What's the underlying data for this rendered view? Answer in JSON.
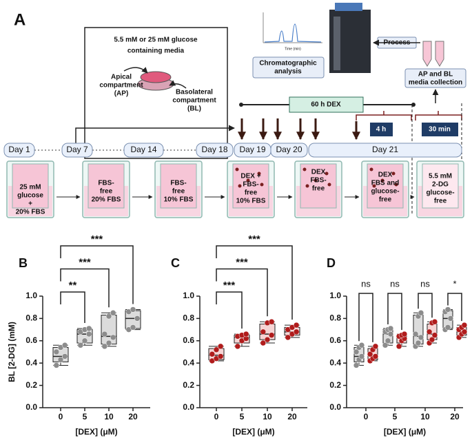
{
  "diagram": {
    "panel_label": "A",
    "media": [
      "5.5 mM or 25 mM glucose",
      "containing media"
    ],
    "apical": [
      "Apical",
      "compartment",
      "(AP)"
    ],
    "basolateral": [
      "Basolateral",
      "compartment",
      "(BL)"
    ],
    "time_axis": "Time (min)",
    "chromatographic": [
      "Chromatographic",
      "analysis"
    ],
    "process": "Process",
    "collection": [
      "AP and BL",
      "media collection"
    ],
    "dex_60h": "60 h DEX",
    "h4": "4 h",
    "min30": "30 min",
    "days": [
      "Day 1",
      "Day 7",
      "Day 14",
      "Day 18",
      "Day 19",
      "Day 20",
      "Day 21"
    ],
    "wells": [
      [
        "25 mM",
        "glucose",
        "+",
        "20% FBS"
      ],
      [
        "FBS-",
        "free",
        "20% FBS"
      ],
      [
        "FBS-",
        "free",
        "10% FBS"
      ],
      [
        "DEX +",
        "FBS-",
        "free",
        "10% FBS"
      ],
      [
        "DEX",
        "FBS-",
        "free"
      ],
      [
        "DEX",
        "FBS and",
        "glucose-",
        "free"
      ],
      [
        "5.5 mM",
        "2-DG",
        "glucose-",
        "free"
      ]
    ]
  },
  "chart_data": [
    {
      "type": "box",
      "panel_label": "B",
      "ylabel": "BL [2-DG] (mM)",
      "xlabel": "[DEX] (μM)",
      "categories": [
        "0",
        "5",
        "10",
        "20"
      ],
      "ylim": [
        0,
        1
      ],
      "yticks": [
        {
          "value": 0,
          "label": "0.0"
        },
        {
          "value": 0.2,
          "label": "0.2"
        },
        {
          "value": 0.4,
          "label": "0.4"
        },
        {
          "value": 0.6,
          "label": "0.6"
        },
        {
          "value": 0.8,
          "label": "0.8"
        },
        {
          "value": 1,
          "label": "1.0"
        }
      ],
      "comparisons": [
        "**",
        "***",
        "***"
      ],
      "series": [
        {
          "color": "#8c8c8c",
          "fill": "#dcdcdc",
          "boxes": [
            {
              "min": 0.38,
              "q1": 0.41,
              "median": 0.46,
              "q3": 0.54,
              "max": 0.56
            },
            {
              "min": 0.56,
              "q1": 0.58,
              "median": 0.66,
              "q3": 0.7,
              "max": 0.71
            },
            {
              "min": 0.55,
              "q1": 0.57,
              "median": 0.64,
              "q3": 0.83,
              "max": 0.85
            },
            {
              "min": 0.7,
              "q1": 0.71,
              "median": 0.8,
              "q3": 0.87,
              "max": 0.88
            }
          ],
          "points": [
            [
              0.38,
              0.43,
              0.46,
              0.5,
              0.54,
              0.56
            ],
            [
              0.56,
              0.6,
              0.66,
              0.68,
              0.7,
              0.71
            ],
            [
              0.55,
              0.58,
              0.63,
              0.66,
              0.82,
              0.85
            ],
            [
              0.7,
              0.72,
              0.8,
              0.86,
              0.88
            ]
          ]
        }
      ]
    },
    {
      "type": "box",
      "panel_label": "C",
      "xlabel": "[DEX] (μM)",
      "categories": [
        "0",
        "5",
        "10",
        "20"
      ],
      "ylim": [
        0,
        1
      ],
      "yticks": [
        {
          "value": 0,
          "label": "0.0"
        },
        {
          "value": 0.2,
          "label": "0.2"
        },
        {
          "value": 0.4,
          "label": "0.4"
        },
        {
          "value": 0.6,
          "label": "0.6"
        },
        {
          "value": 0.8,
          "label": "0.8"
        },
        {
          "value": 1,
          "label": "1.0"
        }
      ],
      "comparisons": [
        "***",
        "***",
        "***"
      ],
      "series": [
        {
          "color": "#b01c1c",
          "fill": "#f6d4d4",
          "boxes": [
            {
              "min": 0.42,
              "q1": 0.43,
              "median": 0.47,
              "q3": 0.53,
              "max": 0.55
            },
            {
              "min": 0.55,
              "q1": 0.58,
              "median": 0.63,
              "q3": 0.65,
              "max": 0.66
            },
            {
              "min": 0.58,
              "q1": 0.61,
              "median": 0.66,
              "q3": 0.75,
              "max": 0.77
            },
            {
              "min": 0.63,
              "q1": 0.65,
              "median": 0.68,
              "q3": 0.72,
              "max": 0.74
            }
          ],
          "points": [
            [
              0.42,
              0.44,
              0.46,
              0.48,
              0.52,
              0.55
            ],
            [
              0.55,
              0.6,
              0.62,
              0.64,
              0.65,
              0.66
            ],
            [
              0.58,
              0.61,
              0.65,
              0.68,
              0.76,
              0.77
            ],
            [
              0.63,
              0.66,
              0.68,
              0.7,
              0.72,
              0.74
            ]
          ]
        }
      ]
    },
    {
      "type": "grouped-box",
      "panel_label": "D",
      "xlabel": "[DEX] (μM)",
      "categories": [
        "0",
        "5",
        "10",
        "20"
      ],
      "ylim": [
        0,
        1
      ],
      "yticks": [
        {
          "value": 0,
          "label": "0.0"
        },
        {
          "value": 0.2,
          "label": "0.2"
        },
        {
          "value": 0.4,
          "label": "0.4"
        },
        {
          "value": 0.6,
          "label": "0.6"
        },
        {
          "value": 0.8,
          "label": "0.8"
        },
        {
          "value": 1,
          "label": "1.0"
        }
      ],
      "annotations": [
        "ns",
        "ns",
        "ns",
        "*"
      ],
      "series": [
        {
          "color": "#8c8c8c",
          "fill": "#dcdcdc",
          "boxes": [
            {
              "min": 0.38,
              "q1": 0.41,
              "median": 0.46,
              "q3": 0.54,
              "max": 0.56
            },
            {
              "min": 0.56,
              "q1": 0.58,
              "median": 0.66,
              "q3": 0.7,
              "max": 0.71
            },
            {
              "min": 0.55,
              "q1": 0.57,
              "median": 0.64,
              "q3": 0.83,
              "max": 0.85
            },
            {
              "min": 0.7,
              "q1": 0.71,
              "median": 0.8,
              "q3": 0.87,
              "max": 0.88
            }
          ],
          "points": [
            [
              0.38,
              0.43,
              0.46,
              0.5,
              0.54,
              0.56
            ],
            [
              0.56,
              0.6,
              0.66,
              0.68,
              0.7,
              0.71
            ],
            [
              0.55,
              0.58,
              0.63,
              0.66,
              0.82,
              0.85
            ],
            [
              0.7,
              0.72,
              0.8,
              0.86,
              0.88
            ]
          ]
        },
        {
          "color": "#b01c1c",
          "fill": "#f6d4d4",
          "boxes": [
            {
              "min": 0.42,
              "q1": 0.43,
              "median": 0.47,
              "q3": 0.53,
              "max": 0.55
            },
            {
              "min": 0.55,
              "q1": 0.58,
              "median": 0.63,
              "q3": 0.65,
              "max": 0.66
            },
            {
              "min": 0.58,
              "q1": 0.61,
              "median": 0.66,
              "q3": 0.75,
              "max": 0.77
            },
            {
              "min": 0.63,
              "q1": 0.65,
              "median": 0.68,
              "q3": 0.72,
              "max": 0.74
            }
          ],
          "points": [
            [
              0.42,
              0.44,
              0.46,
              0.48,
              0.52,
              0.55
            ],
            [
              0.55,
              0.6,
              0.62,
              0.64,
              0.65,
              0.66
            ],
            [
              0.58,
              0.61,
              0.65,
              0.68,
              0.76,
              0.77
            ],
            [
              0.63,
              0.66,
              0.68,
              0.7,
              0.72,
              0.74
            ]
          ]
        }
      ]
    }
  ]
}
